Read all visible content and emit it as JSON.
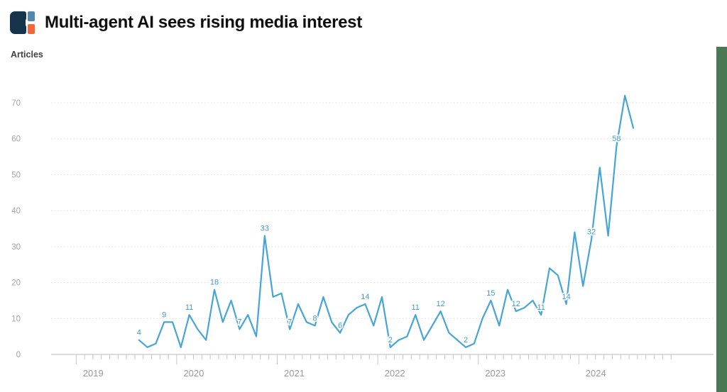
{
  "header": {
    "title": "Multi-agent AI sees rising media interest"
  },
  "ylabel_text": "Articles",
  "chart_data": {
    "type": "line",
    "title": "Multi-agent AI sees rising media interest",
    "xlabel": "",
    "ylabel": "Articles",
    "start_month": "2019-08",
    "months": [
      "2019-08",
      "2019-09",
      "2019-10",
      "2019-11",
      "2019-12",
      "2020-01",
      "2020-02",
      "2020-03",
      "2020-04",
      "2020-05",
      "2020-06",
      "2020-07",
      "2020-08",
      "2020-09",
      "2020-10",
      "2020-11",
      "2020-12",
      "2021-01",
      "2021-02",
      "2021-03",
      "2021-04",
      "2021-05",
      "2021-06",
      "2021-07",
      "2021-08",
      "2021-09",
      "2021-10",
      "2021-11",
      "2021-12",
      "2022-01",
      "2022-02",
      "2022-03",
      "2022-04",
      "2022-05",
      "2022-06",
      "2022-07",
      "2022-08",
      "2022-09",
      "2022-10",
      "2022-11",
      "2022-12",
      "2023-01",
      "2023-02",
      "2023-03",
      "2023-04",
      "2023-05",
      "2023-06",
      "2023-07",
      "2023-08",
      "2023-09",
      "2023-10",
      "2023-11",
      "2023-12",
      "2024-01",
      "2024-02",
      "2024-03",
      "2024-04",
      "2024-05",
      "2024-06",
      "2024-07"
    ],
    "values": [
      4,
      2,
      3,
      9,
      9,
      2,
      11,
      7,
      4,
      18,
      9,
      15,
      7,
      11,
      5,
      33,
      16,
      17,
      7,
      14,
      9,
      8,
      16,
      9,
      6,
      11,
      13,
      14,
      8,
      16,
      2,
      4,
      5,
      11,
      4,
      8,
      12,
      6,
      4,
      2,
      3,
      10,
      15,
      8,
      18,
      12,
      13,
      15,
      11,
      24,
      22,
      14,
      34,
      19,
      32,
      52,
      33,
      58,
      72,
      63
    ],
    "label_every": 3,
    "label_start_index": 0,
    "point_labels": [
      4,
      9,
      11,
      18,
      7,
      33,
      7,
      8,
      6,
      14,
      2,
      11,
      12,
      2,
      15,
      12,
      11,
      14,
      32,
      58
    ],
    "year_ticks": [
      "2019",
      "2020",
      "2021",
      "2022",
      "2023",
      "2024"
    ],
    "ylim": [
      0,
      70
    ],
    "yticks": [
      0,
      10,
      20,
      30,
      40,
      50,
      60,
      70
    ],
    "grid": "horizontal-dotted",
    "legend": "none",
    "line_color": "#45a5d6",
    "label_color": "#3d9bcd",
    "axis_color": "#c6c6c6",
    "tick_label_color": "#a3a3a3",
    "year_label_color": "#9a9a9a"
  },
  "decor": {
    "right_edge_bar_color": "#4a7852"
  }
}
